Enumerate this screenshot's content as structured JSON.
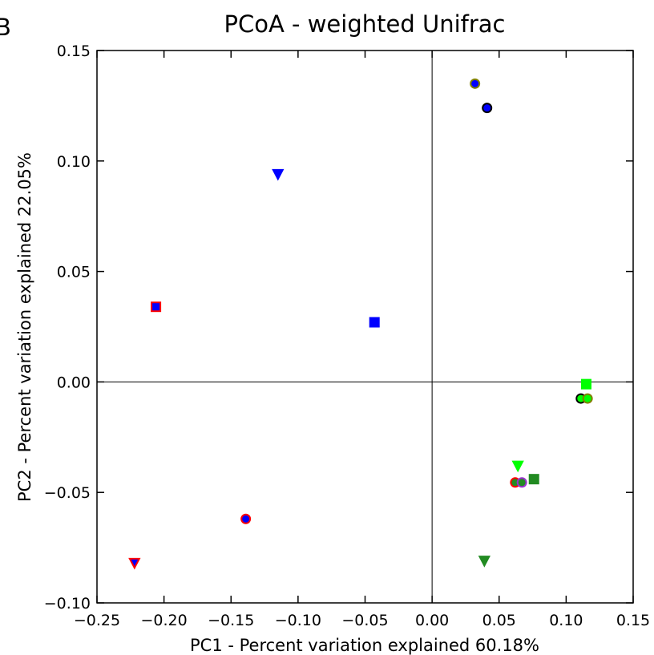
{
  "panel_letter": "B",
  "chart_data": {
    "type": "scatter",
    "title": "PCoA - weighted Unifrac",
    "xlabel": "PC1 - Percent variation explained 60.18%",
    "ylabel": "PC2 - Percent variation explained 22.05%",
    "xlim": [
      -0.25,
      0.15
    ],
    "ylim": [
      -0.1,
      0.15
    ],
    "x_ticks": [
      -0.25,
      -0.2,
      -0.15,
      -0.1,
      -0.05,
      0.0,
      0.05,
      0.1,
      0.15
    ],
    "x_tick_labels": [
      "−0.25",
      "−0.20",
      "−0.15",
      "−0.10",
      "−0.05",
      "0.00",
      "0.05",
      "0.10",
      "0.15"
    ],
    "y_ticks": [
      -0.1,
      -0.05,
      0.0,
      0.05,
      0.1,
      0.15
    ],
    "y_tick_labels": [
      "−0.10",
      "−0.05",
      "0.00",
      "0.05",
      "0.10",
      "0.15"
    ],
    "zero_lines": true,
    "grid": false,
    "points": [
      {
        "x": 0.032,
        "y": 0.135,
        "marker": "circle",
        "fill": "#0000ff",
        "edge": "#808000"
      },
      {
        "x": 0.041,
        "y": 0.124,
        "marker": "circle",
        "fill": "#0000ff",
        "edge": "#000000"
      },
      {
        "x": -0.115,
        "y": 0.094,
        "marker": "triangle-down",
        "fill": "#0000ff",
        "edge": "#0000ff"
      },
      {
        "x": -0.206,
        "y": 0.034,
        "marker": "square",
        "fill": "#0000ff",
        "edge": "#ff0000"
      },
      {
        "x": -0.043,
        "y": 0.027,
        "marker": "square",
        "fill": "#0000ff",
        "edge": "#0000ff"
      },
      {
        "x": 0.115,
        "y": -0.001,
        "marker": "square",
        "fill": "#00ff00",
        "edge": "#00ff00"
      },
      {
        "x": 0.111,
        "y": -0.0075,
        "marker": "circle",
        "fill": "#00ff00",
        "edge": "#000000"
      },
      {
        "x": 0.116,
        "y": -0.0075,
        "marker": "circle",
        "fill": "#00ff00",
        "edge": "#808000"
      },
      {
        "x": 0.064,
        "y": -0.038,
        "marker": "triangle-down",
        "fill": "#00ff00",
        "edge": "#00ff00"
      },
      {
        "x": 0.076,
        "y": -0.044,
        "marker": "square",
        "fill": "#228b22",
        "edge": "#228b22"
      },
      {
        "x": 0.062,
        "y": -0.0455,
        "marker": "circle",
        "fill": "#228b22",
        "edge": "#ff0000"
      },
      {
        "x": 0.067,
        "y": -0.0455,
        "marker": "circle",
        "fill": "#228b22",
        "edge": "#9932cc"
      },
      {
        "x": 0.039,
        "y": -0.081,
        "marker": "triangle-down",
        "fill": "#228b22",
        "edge": "#228b22"
      },
      {
        "x": -0.139,
        "y": -0.062,
        "marker": "circle",
        "fill": "#0000ff",
        "edge": "#ff0000"
      },
      {
        "x": -0.222,
        "y": -0.082,
        "marker": "triangle-down",
        "fill": "#0000ff",
        "edge": "#ff0000"
      }
    ]
  }
}
